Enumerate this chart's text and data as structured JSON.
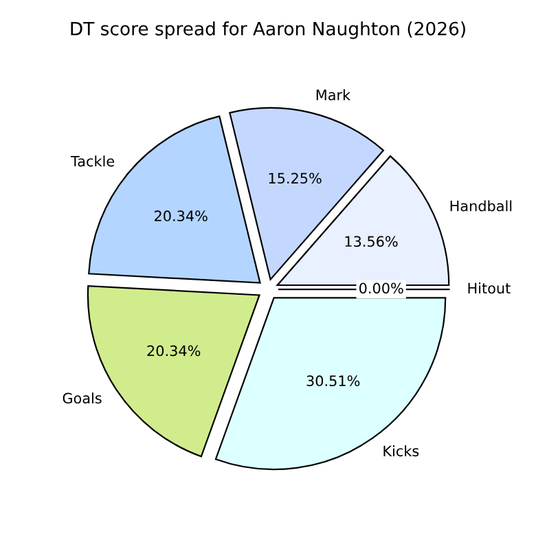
{
  "chart_data": {
    "type": "pie",
    "title": "DT score spread for Aaron Naughton (2026)",
    "categories": [
      "Handball",
      "Mark",
      "Tackle",
      "Goals",
      "Kicks",
      "Hitout"
    ],
    "values": [
      13.56,
      15.25,
      20.34,
      20.34,
      30.51,
      0.0
    ],
    "colors": [
      "#e9f0ff",
      "#c4d8ff",
      "#b3d5ff",
      "#d1ec8c",
      "#dcffff",
      "#ffffff"
    ],
    "value_labels": [
      "13.56%",
      "15.25%",
      "20.34%",
      "20.34%",
      "30.51%",
      "0.00%"
    ]
  }
}
